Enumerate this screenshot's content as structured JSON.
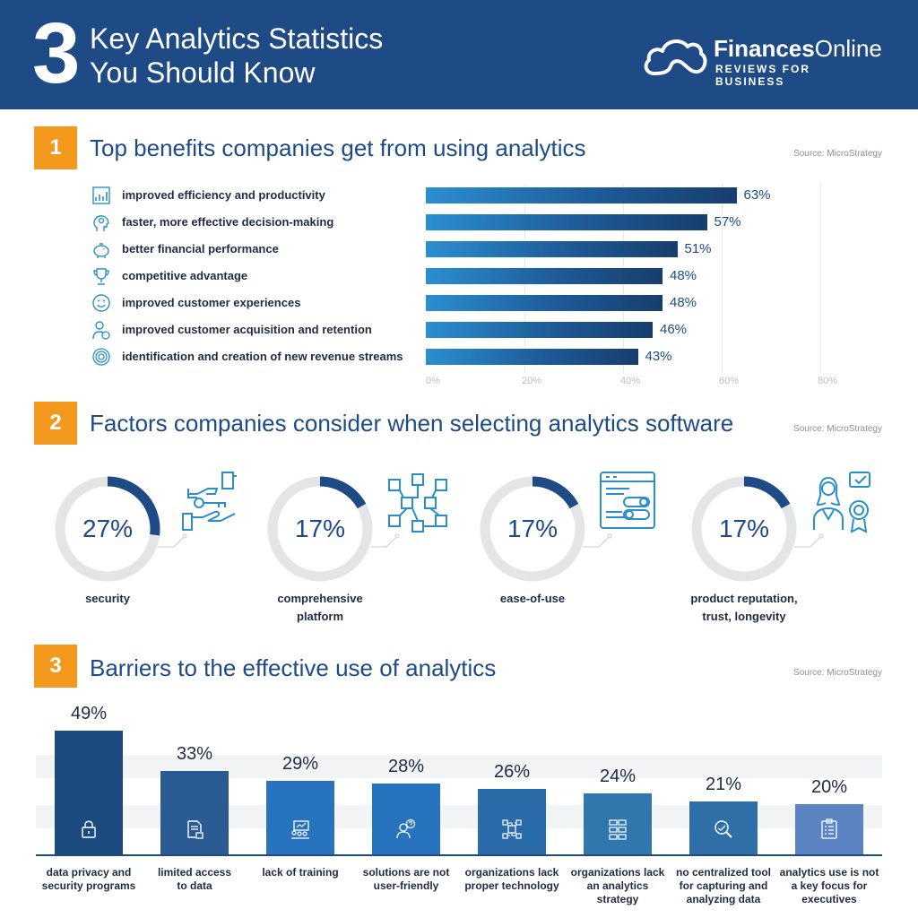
{
  "header": {
    "number": "3",
    "title_line1": "Key Analytics Statistics",
    "title_line2": "You Should Know",
    "brand_name_bold": "Finances",
    "brand_name_rest": "Online",
    "brand_tagline": "REVIEWS FOR BUSINESS"
  },
  "colors": {
    "header_bg": "#1e4a86",
    "accent_orange": "#f39a1e",
    "bar_dark": "#173e6e",
    "bar_light": "#2b8fd1",
    "donut_track": "#e4e5e7",
    "donut_arc": "#1e4a86"
  },
  "section1": {
    "number": "1",
    "title": "Top benefits companies get from using analytics",
    "source": "Source: MicroStrategy"
  },
  "section2": {
    "number": "2",
    "title": "Factors companies consider when selecting analytics software",
    "source": "Source: MicroStrategy",
    "items": [
      {
        "value": "27%",
        "pct": 27,
        "label_line1": "security",
        "label_line2": "",
        "icon": "key-hand-icon"
      },
      {
        "value": "17%",
        "pct": 17,
        "label_line1": "comprehensive",
        "label_line2": "platform",
        "icon": "cube-network-icon"
      },
      {
        "value": "17%",
        "pct": 17,
        "label_line1": "ease-of-use",
        "label_line2": "",
        "icon": "toggle-window-icon"
      },
      {
        "value": "17%",
        "pct": 17,
        "label_line1": "product reputation,",
        "label_line2": "trust, longevity",
        "icon": "person-award-icon"
      }
    ]
  },
  "section3": {
    "number": "3",
    "title": "Barriers to the effective use of analytics",
    "source": "Source: MicroStrategy"
  },
  "chart_data": [
    {
      "type": "bar",
      "orientation": "horizontal",
      "title": "Top benefits companies get from using analytics",
      "categories": [
        "improved efficiency and productivity",
        "faster, more effective decision-making",
        "better financial performance",
        "competitive advantage",
        "improved customer experiences",
        "improved customer acquisition and retention",
        "identification and creation of new revenue streams"
      ],
      "values": [
        63,
        57,
        51,
        48,
        48,
        46,
        43
      ],
      "value_labels": [
        "63%",
        "57%",
        "51%",
        "48%",
        "48%",
        "46%",
        "43%"
      ],
      "icons": [
        "chart-icon",
        "head-gear-icon",
        "piggy-bank-icon",
        "trophy-icon",
        "smile-icon",
        "person-refresh-icon",
        "target-icon"
      ],
      "xlim": [
        0,
        80
      ],
      "xticks": [
        "0%",
        "20%",
        "40%",
        "60%",
        "80%"
      ],
      "grid": true
    },
    {
      "type": "bar",
      "orientation": "vertical",
      "title": "Barriers to the effective use of analytics",
      "categories": [
        [
          "data privacy and",
          "security programs",
          ""
        ],
        [
          "limited access",
          "to data",
          ""
        ],
        [
          "lack of training",
          "",
          ""
        ],
        [
          "solutions are not",
          "user-friendly",
          ""
        ],
        [
          "organizations lack",
          "proper technology",
          ""
        ],
        [
          "organizations lack",
          "an analytics",
          "strategy"
        ],
        [
          "no centralized tool",
          "for capturing and",
          "analyzing data"
        ],
        [
          "analytics use is not",
          "a key focus for",
          "executives"
        ]
      ],
      "values": [
        49,
        33,
        29,
        28,
        26,
        24,
        21,
        20
      ],
      "value_labels": [
        "49%",
        "33%",
        "29%",
        "28%",
        "26%",
        "24%",
        "21%",
        "20%"
      ],
      "bar_colors": [
        "#1b4a7f",
        "#2b5b93",
        "#2873be",
        "#2873be",
        "#2a6ba9",
        "#2f77ad",
        "#2d6fa6",
        "#5a84c2"
      ],
      "icons": [
        "lock-icon",
        "document-lock-icon",
        "presentation-icon",
        "person-question-icon",
        "circuit-icon",
        "flowchart-icon",
        "magnifier-chart-icon",
        "clipboard-icon"
      ]
    }
  ]
}
